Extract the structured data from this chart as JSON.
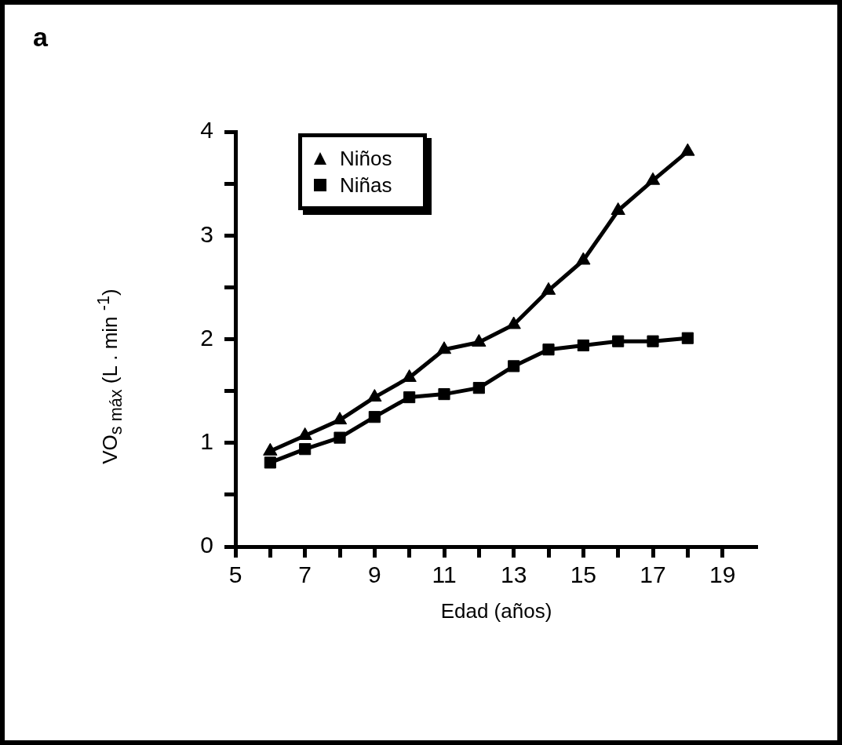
{
  "chart_data": {
    "type": "line",
    "xlabel": "Edad (años)",
    "ylabel": "VO$_{s máx}$ (L . min $^{-1}$)",
    "annotations": [
      "a"
    ],
    "xlim": [
      5,
      20
    ],
    "xticks": [
      5,
      {
        "value": 6,
        "label": null
      },
      7,
      {
        "value": 8,
        "label": null
      },
      9,
      {
        "value": 10,
        "label": null
      },
      11,
      {
        "value": 12,
        "label": null
      },
      13,
      {
        "value": 14,
        "label": null
      },
      15,
      {
        "value": 16,
        "label": null
      },
      17,
      {
        "value": 18,
        "label": null
      },
      19
    ],
    "ylim": [
      0,
      4
    ],
    "yticks": [
      0,
      {
        "value": 0.5,
        "label": null
      },
      1,
      {
        "value": 1.5,
        "label": null
      },
      2,
      {
        "value": 2.5,
        "label": null
      },
      3,
      {
        "value": 3.5,
        "label": null
      },
      4
    ],
    "x": [
      6,
      7,
      8,
      9,
      10,
      11,
      12,
      13,
      14,
      15,
      16,
      17,
      18
    ],
    "series": [
      {
        "name": "Niños",
        "color": "#000000",
        "marker": "triangle",
        "values": [
          0.92,
          1.07,
          1.22,
          1.44,
          1.63,
          1.9,
          1.97,
          2.14,
          2.47,
          2.76,
          3.24,
          3.53,
          3.81
        ]
      },
      {
        "name": "Niñas",
        "color": "#000000",
        "marker": "square",
        "values": [
          0.81,
          0.94,
          1.05,
          1.25,
          1.44,
          1.47,
          1.53,
          1.74,
          1.9,
          1.94,
          1.98,
          1.98,
          2.01
        ]
      }
    ],
    "grid": false,
    "legend": "top left",
    "line_style": "solid"
  }
}
